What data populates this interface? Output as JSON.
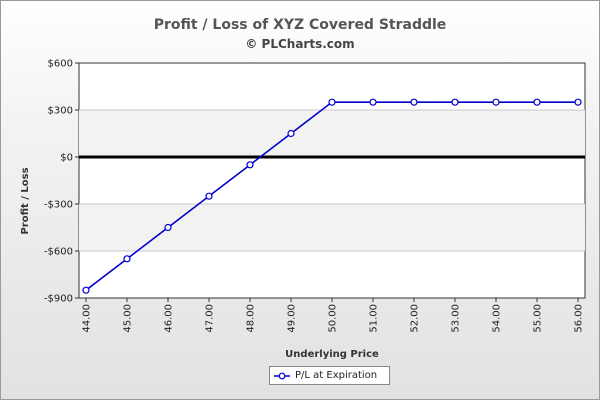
{
  "chart_data": {
    "type": "line",
    "title": "Profit / Loss of XYZ Covered Straddle",
    "subtitle": "© PLCharts.com",
    "xlabel": "Underlying Price",
    "ylabel": "Profit / Loss",
    "x_tick_labels": [
      "44.00",
      "45.00",
      "46.00",
      "47.00",
      "48.00",
      "49.00",
      "50.00",
      "51.00",
      "52.00",
      "53.00",
      "54.00",
      "55.00",
      "56.00"
    ],
    "y_tick_labels": [
      "$600",
      "$300",
      "$0",
      "-$300",
      "-$600",
      "-$900"
    ],
    "y_ticks": [
      600,
      300,
      0,
      -300,
      -600,
      -900
    ],
    "ylim": [
      -900,
      600
    ],
    "xlim": [
      44,
      56
    ],
    "grid": "horizontal",
    "legend_position": "bottom",
    "series": [
      {
        "name": "P/L at Expiration",
        "color": "#0000cc",
        "x": [
          44,
          45,
          46,
          47,
          48,
          49,
          50,
          51,
          52,
          53,
          54,
          55,
          56
        ],
        "values": [
          -850,
          -650,
          -450,
          -250,
          -50,
          150,
          350,
          350,
          350,
          350,
          350,
          350,
          350
        ]
      }
    ]
  }
}
